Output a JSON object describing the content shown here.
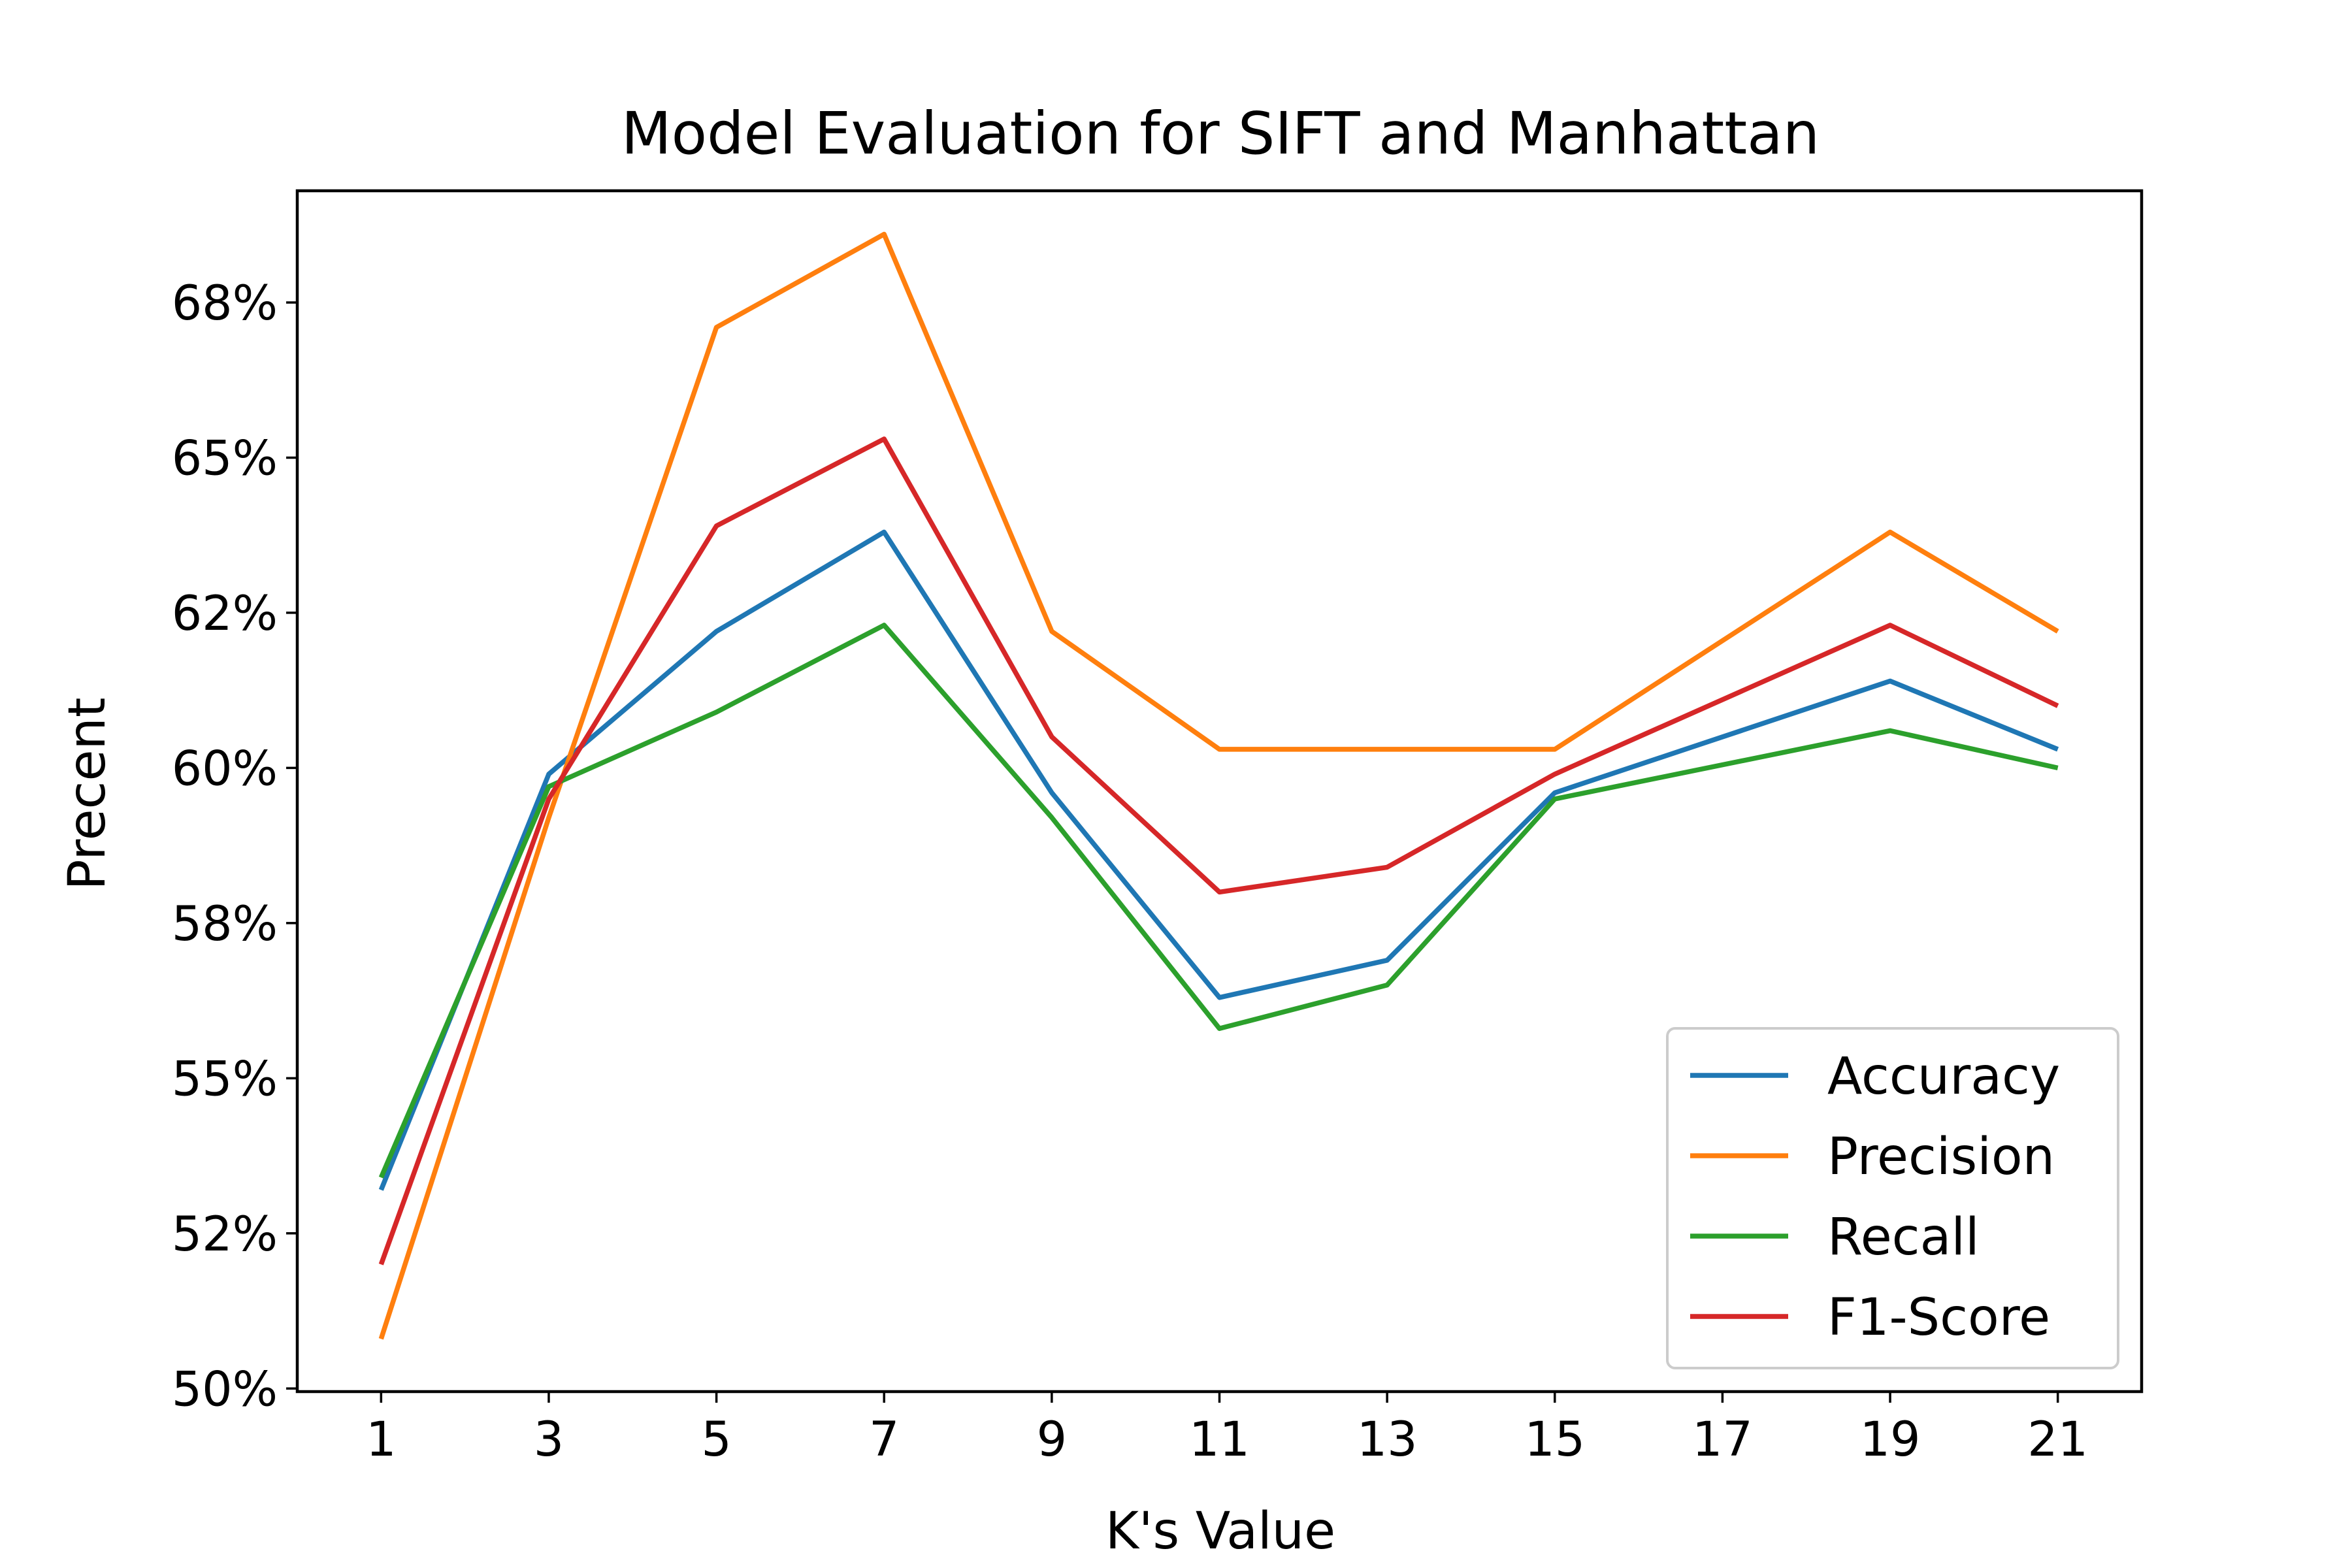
{
  "chart_data": {
    "type": "line",
    "title": "Model Evaluation for SIFT and Manhattan",
    "xlabel": "K's Value",
    "ylabel": "Precent",
    "categories": [
      "1",
      "3",
      "5",
      "7",
      "9",
      "11",
      "13",
      "15",
      "17",
      "19",
      "21"
    ],
    "y_ticks": [
      {
        "value": 50,
        "label": "50%"
      },
      {
        "value": 52.5,
        "label": "52%"
      },
      {
        "value": 55,
        "label": "55%"
      },
      {
        "value": 57.5,
        "label": "58%"
      },
      {
        "value": 60,
        "label": "60%"
      },
      {
        "value": 62.5,
        "label": "62%"
      },
      {
        "value": 65,
        "label": "65%"
      },
      {
        "value": 67.5,
        "label": "68%"
      }
    ],
    "ylim": [
      49.95,
      69.3
    ],
    "x_index_range": [
      -0.5,
      10.5
    ],
    "legend_position": "lower-right",
    "grid": false,
    "series": [
      {
        "name": "Accuracy",
        "color": "#1f77b4",
        "points": [
          [
            0,
            53.2
          ],
          [
            1,
            59.9
          ],
          [
            2,
            62.2
          ],
          [
            3,
            63.8
          ],
          [
            4,
            59.6
          ],
          [
            5,
            56.3
          ],
          [
            6,
            56.9
          ],
          [
            7,
            59.6
          ],
          [
            8,
            null
          ],
          [
            9,
            61.4
          ],
          [
            10,
            60.3
          ]
        ]
      },
      {
        "name": "Precision",
        "color": "#ff7f0e",
        "points": [
          [
            0,
            50.8
          ],
          [
            1,
            59.2
          ],
          [
            2,
            67.1
          ],
          [
            3,
            68.6
          ],
          [
            4,
            62.2
          ],
          [
            5,
            60.3
          ],
          [
            6,
            60.3
          ],
          [
            7,
            60.3
          ],
          [
            8,
            null
          ],
          [
            9,
            63.8
          ],
          [
            10,
            62.2
          ]
        ]
      },
      {
        "name": "Recall",
        "color": "#2ca02c",
        "points": [
          [
            0,
            53.4
          ],
          [
            1,
            59.7
          ],
          [
            2,
            60.9
          ],
          [
            3,
            62.3
          ],
          [
            4,
            59.2
          ],
          [
            5,
            55.8
          ],
          [
            6,
            56.5
          ],
          [
            7,
            59.5
          ],
          [
            8,
            null
          ],
          [
            9,
            60.6
          ],
          [
            10,
            60.0
          ]
        ]
      },
      {
        "name": "F1-Score",
        "color": "#d62728",
        "points": [
          [
            0,
            52.0
          ],
          [
            1,
            59.5
          ],
          [
            2,
            63.9
          ],
          [
            3,
            65.3
          ],
          [
            4,
            60.5
          ],
          [
            5,
            58.0
          ],
          [
            6,
            58.4
          ],
          [
            7,
            59.9
          ],
          [
            8,
            null
          ],
          [
            9,
            62.3
          ],
          [
            10,
            61.0
          ]
        ]
      }
    ]
  }
}
